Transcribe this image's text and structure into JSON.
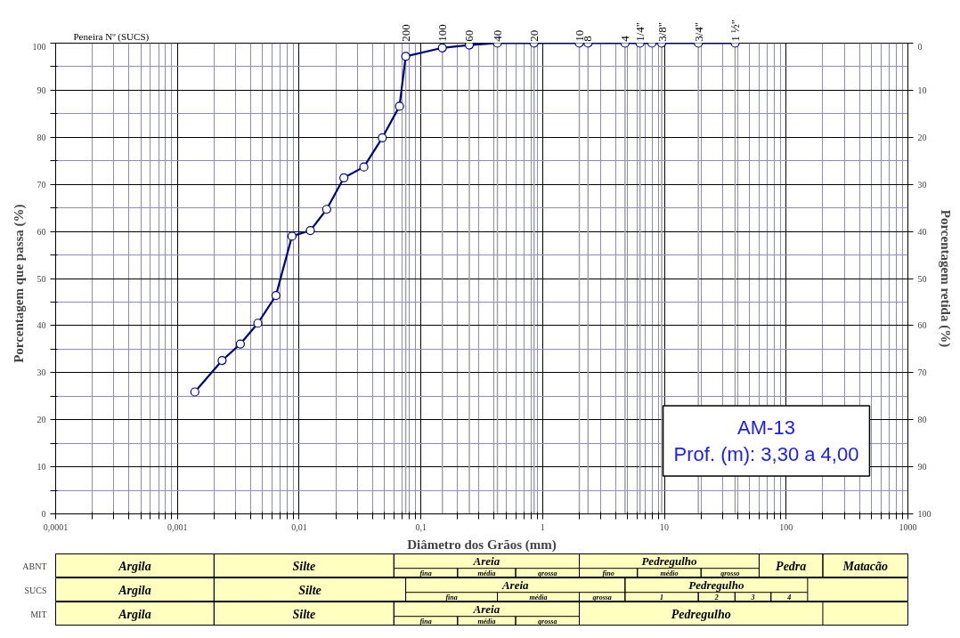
{
  "chart_data": [
    {
      "type": "line",
      "xlabel": "Diâmetro dos Grãos (mm)",
      "ylabel": "Porcentagem que passa    (%)",
      "y2label": "Porcentagem retida (%)",
      "x2label": "Peneira Nº (SUCS)",
      "log": "x",
      "grid": true,
      "marker": "circle",
      "line_style": "solid",
      "xlim": [
        0.0001,
        1000
      ],
      "ylim": [
        0,
        100
      ],
      "y2lim": [
        100,
        0
      ],
      "xticks": [
        {
          "value": 0.0001,
          "label": "0,0001"
        },
        {
          "value": 0.0002,
          "label": null
        },
        {
          "value": 0.0003,
          "label": null
        },
        {
          "value": 0.0004,
          "label": null
        },
        {
          "value": 0.0005,
          "label": null
        },
        {
          "value": 0.0006,
          "label": null
        },
        {
          "value": 0.0007,
          "label": null
        },
        {
          "value": 0.0008,
          "label": null
        },
        {
          "value": 0.0009,
          "label": null
        },
        {
          "value": 0.001,
          "label": "0,001"
        },
        {
          "value": 0.002,
          "label": null
        },
        {
          "value": 0.003,
          "label": null
        },
        {
          "value": 0.004,
          "label": null
        },
        {
          "value": 0.005,
          "label": null
        },
        {
          "value": 0.006,
          "label": null
        },
        {
          "value": 0.007,
          "label": null
        },
        {
          "value": 0.008,
          "label": null
        },
        {
          "value": 0.009,
          "label": null
        },
        {
          "value": 0.01,
          "label": "0,01"
        },
        {
          "value": 0.02,
          "label": null
        },
        {
          "value": 0.03,
          "label": null
        },
        {
          "value": 0.04,
          "label": null
        },
        {
          "value": 0.05,
          "label": null
        },
        {
          "value": 0.06,
          "label": null
        },
        {
          "value": 0.07,
          "label": null
        },
        {
          "value": 0.08,
          "label": null
        },
        {
          "value": 0.09,
          "label": null
        },
        {
          "value": 0.1,
          "label": "0,1"
        },
        {
          "value": 0.2,
          "label": null
        },
        {
          "value": 0.3,
          "label": null
        },
        {
          "value": 0.4,
          "label": null
        },
        {
          "value": 0.5,
          "label": null
        },
        {
          "value": 0.6,
          "label": null
        },
        {
          "value": 0.7,
          "label": null
        },
        {
          "value": 0.8,
          "label": null
        },
        {
          "value": 0.9,
          "label": null
        },
        1,
        {
          "value": 2,
          "label": null
        },
        {
          "value": 3,
          "label": null
        },
        {
          "value": 4,
          "label": null
        },
        {
          "value": 5,
          "label": null
        },
        {
          "value": 6,
          "label": null
        },
        {
          "value": 7,
          "label": null
        },
        {
          "value": 8,
          "label": null
        },
        {
          "value": 9,
          "label": null
        },
        10,
        {
          "value": 20,
          "label": null
        },
        {
          "value": 30,
          "label": null
        },
        {
          "value": 40,
          "label": null
        },
        {
          "value": 50,
          "label": null
        },
        {
          "value": 60,
          "label": null
        },
        {
          "value": 70,
          "label": null
        },
        {
          "value": 80,
          "label": null
        },
        {
          "value": 90,
          "label": null
        },
        100,
        {
          "value": 200,
          "label": null
        },
        {
          "value": 300,
          "label": null
        },
        {
          "value": 400,
          "label": null
        },
        {
          "value": 500,
          "label": null
        },
        {
          "value": 600,
          "label": null
        },
        {
          "value": 700,
          "label": null
        },
        {
          "value": 800,
          "label": null
        },
        {
          "value": 900,
          "label": null
        },
        1000
      ],
      "yticks": [
        0,
        {
          "value": 5,
          "label": null
        },
        10,
        {
          "value": 15,
          "label": null
        },
        20,
        {
          "value": 25,
          "label": null
        },
        30,
        {
          "value": 35,
          "label": null
        },
        40,
        {
          "value": 45,
          "label": null
        },
        50,
        {
          "value": 55,
          "label": null
        },
        60,
        {
          "value": 65,
          "label": null
        },
        70,
        {
          "value": 75,
          "label": null
        },
        80,
        {
          "value": 85,
          "label": null
        },
        90,
        {
          "value": 95,
          "label": null
        },
        100
      ],
      "y2ticks": [
        0,
        10,
        20,
        30,
        40,
        50,
        60,
        70,
        80,
        90,
        100
      ],
      "x": [
        0.00139,
        0.00233,
        0.00329,
        0.00458,
        0.00645,
        0.00873,
        0.01236,
        0.01683,
        0.0233,
        0.034,
        0.0482,
        0.0667,
        0.075,
        0.15,
        0.25,
        0.425,
        0.85,
        2.0,
        2.36,
        4.75,
        6.3,
        7.9,
        9.5,
        19.0,
        38.1
      ],
      "series": [
        {
          "color": "#000080",
          "values": [
            25.9,
            32.6,
            36.1,
            40.5,
            46.4,
            59.0,
            60.2,
            64.7,
            71.4,
            73.7,
            79.9,
            86.6,
            97.2,
            99.0,
            99.6,
            100,
            100,
            100,
            100,
            100,
            100,
            100,
            100,
            100,
            100
          ]
        }
      ],
      "annotations": [
        "AM-13",
        "Prof. (m): 3,30 a 4,00",
        {
          "text": "200",
          "x": 0.075,
          "y": 97.2
        },
        {
          "text": "100",
          "x": 0.15,
          "y": 99.0
        },
        {
          "text": "60",
          "x": 0.25,
          "y": 99.6
        },
        {
          "text": "40",
          "x": 0.425,
          "y": 100
        },
        {
          "text": "20",
          "x": 0.85,
          "y": 100
        },
        {
          "text": "10",
          "x": 2.0,
          "y": 100
        },
        {
          "text": "8",
          "x": 2.36,
          "y": 100
        },
        {
          "text": "4",
          "x": 4.75,
          "y": 100
        },
        {
          "text": "1/4\"",
          "x": 6.3,
          "y": 100
        },
        {
          "text": "3/8\"",
          "x": 9.5,
          "y": 100
        },
        {
          "text": "3/4\"",
          "x": 19.0,
          "y": 100
        },
        {
          "text": "1 ½\"",
          "x": 38.1,
          "y": 100
        }
      ]
    },
    {
      "type": "other",
      "title": "ABNT",
      "annotations": [
        "Argila",
        "Silte",
        "Areia",
        "fina",
        "média",
        "grossa",
        "Pedregulho",
        "fino",
        "médio",
        "grosso",
        "Pedra",
        "Matacão"
      ]
    },
    {
      "type": "other",
      "title": "SUCS",
      "annotations": [
        "Argila",
        "Silte",
        "Areia",
        "fina",
        "média",
        "grossa",
        "Pedregulho",
        "1",
        "2",
        "3",
        "4"
      ]
    },
    {
      "type": "other",
      "title": "MIT",
      "annotations": [
        "Argila",
        "Silte",
        "Areia",
        "fina",
        "média",
        "grossa",
        "Pedregulho"
      ]
    }
  ]
}
